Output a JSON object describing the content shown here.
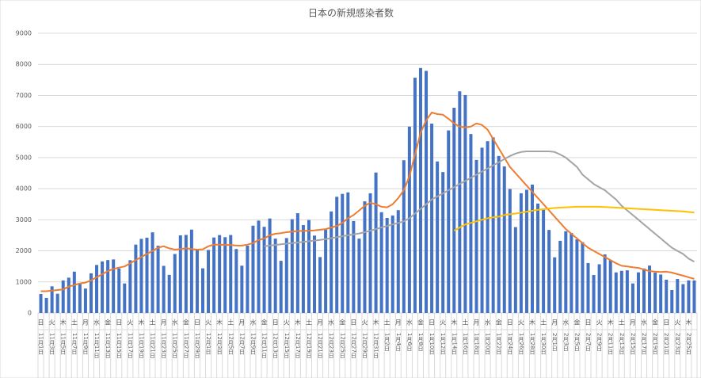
{
  "chart_data": {
    "type": "bar",
    "title": "日本の新規感染者数",
    "categories": [
      "11月1日",
      null,
      "11月3日",
      null,
      "11月5日",
      null,
      "11月7日",
      null,
      "11月9日",
      null,
      "11月11日",
      null,
      "11月13日",
      null,
      "11月15日",
      null,
      "11月17日",
      null,
      "11月19日",
      null,
      "11月21日",
      null,
      "11月23日",
      null,
      "11月25日",
      null,
      "11月27日",
      null,
      "11月29日",
      null,
      "12月1日",
      null,
      "12月3日",
      null,
      "12月5日",
      null,
      "12月7日",
      null,
      "12月9日",
      null,
      "12月11日",
      null,
      "12月13日",
      null,
      "12月15日",
      null,
      "12月17日",
      null,
      "12月19日",
      null,
      "12月21日",
      null,
      "12月23日",
      null,
      "12月25日",
      null,
      "12月27日",
      null,
      "12月29日",
      null,
      "12月31日",
      null,
      "1月2日",
      null,
      "1月4日",
      null,
      "1月6日",
      null,
      "1月8日",
      null,
      "1月10日",
      null,
      "1月12日",
      null,
      "1月14日",
      null,
      "1月16日",
      null,
      "1月18日",
      null,
      "1月20日",
      null,
      "1月22日",
      null,
      "1月24日",
      null,
      "1月26日",
      null,
      "1月28日",
      null,
      "1月30日",
      null,
      "2月1日",
      null,
      "2月3日",
      null,
      "2月5日",
      null,
      "2月7日",
      null,
      "2月9日",
      null,
      "2月11日",
      null,
      "2月13日",
      null,
      "2月15日",
      null,
      "2月17日",
      null,
      "2月19日",
      null,
      "2月21日",
      null,
      "2月23日",
      null,
      "2月25日",
      null
    ],
    "weekdays": [
      "日",
      null,
      "火",
      null,
      "木",
      null,
      "土",
      null,
      "月",
      null,
      "水",
      null,
      "金",
      null,
      "日",
      null,
      "火",
      null,
      "木",
      null,
      "土",
      null,
      "月",
      null,
      "水",
      null,
      "金",
      null,
      "日",
      null,
      "火",
      null,
      "木",
      null,
      "土",
      null,
      "月",
      null,
      "水",
      null,
      "金",
      null,
      "日",
      null,
      "火",
      null,
      "木",
      null,
      "土",
      null,
      "月",
      null,
      "水",
      null,
      "金",
      null,
      "日",
      null,
      "火",
      null,
      "木",
      null,
      "土",
      null,
      "月",
      null,
      "水",
      null,
      "金",
      null,
      "日",
      null,
      "火",
      null,
      "木",
      null,
      "土",
      null,
      "月",
      null,
      "水",
      null,
      "金",
      null,
      "日",
      null,
      "火",
      null,
      "木",
      null,
      "土",
      null,
      "月",
      null,
      "水",
      null,
      "金",
      null,
      "日",
      null,
      "火",
      null,
      "木",
      null,
      "土",
      null,
      "月",
      null,
      "水",
      null,
      "金",
      null,
      "日",
      null,
      "火",
      null,
      "木",
      null
    ],
    "values": [
      613,
      487,
      859,
      620,
      1048,
      1138,
      1331,
      930,
      788,
      1278,
      1546,
      1660,
      1704,
      1724,
      1432,
      951,
      1699,
      2201,
      2386,
      2424,
      2596,
      2165,
      1518,
      1228,
      1900,
      2499,
      2512,
      2684,
      2060,
      1438,
      2029,
      2430,
      2508,
      2440,
      2510,
      2060,
      1523,
      2167,
      2810,
      2973,
      2774,
      3041,
      2394,
      1680,
      2411,
      3018,
      3211,
      2829,
      2992,
      2491,
      1800,
      2679,
      3269,
      3740,
      3833,
      3881,
      2960,
      2394,
      3593,
      3852,
      4520,
      3244,
      3059,
      3138,
      3309,
      4915,
      5997,
      7570,
      7882,
      7790,
      6094,
      4876,
      4535,
      5875,
      6605,
      7133,
      7014,
      5759,
      4925,
      5320,
      5529,
      5652,
      5053,
      4717,
      3990,
      2764,
      3853,
      3965,
      4132,
      3522,
      3343,
      2673,
      1792,
      2324,
      2630,
      2576,
      2370,
      2279,
      1608,
      1224,
      1569,
      1884,
      1699,
      1307,
      1357,
      1374,
      952,
      1308,
      1432,
      1526,
      1301,
      1238,
      1072,
      739,
      1096,
      929,
      1050,
      1050
    ],
    "color": "#4472c4",
    "series": [
      {
        "color": "#ed7d31",
        "values": [
          700,
          700,
          720,
          740,
          760,
          850,
          900,
          950,
          980,
          1050,
          1150,
          1250,
          1350,
          1420,
          1460,
          1500,
          1600,
          1700,
          1800,
          1900,
          2000,
          2100,
          2150,
          2080,
          2040,
          2060,
          2080,
          2060,
          2040,
          2050,
          2150,
          2200,
          2200,
          2190,
          2190,
          2170,
          2170,
          2200,
          2250,
          2350,
          2400,
          2500,
          2550,
          2570,
          2600,
          2620,
          2640,
          2640,
          2650,
          2660,
          2680,
          2700,
          2750,
          2800,
          2900,
          3050,
          3150,
          3300,
          3450,
          3550,
          3500,
          3420,
          3400,
          3500,
          3700,
          3950,
          4400,
          5100,
          5800,
          6200,
          6450,
          6400,
          6380,
          6250,
          6100,
          6000,
          5970,
          6000,
          6100,
          6050,
          5900,
          5600,
          5300,
          5000,
          4700,
          4500,
          4300,
          4100,
          3900,
          3700,
          3500,
          3300,
          3100,
          2900,
          2700,
          2550,
          2400,
          2250,
          2100,
          2000,
          1900,
          1800,
          1700,
          1600,
          1520,
          1500,
          1470,
          1450,
          1400,
          1350,
          1330,
          1320,
          1330,
          1300,
          1250,
          1200,
          1150,
          1100
        ]
      },
      {
        "color": "#a5a5a5",
        "values": [
          null,
          null,
          null,
          null,
          null,
          null,
          null,
          null,
          null,
          null,
          null,
          null,
          null,
          null,
          null,
          null,
          null,
          null,
          null,
          null,
          null,
          null,
          null,
          null,
          null,
          null,
          null,
          null,
          null,
          null,
          null,
          null,
          null,
          null,
          null,
          null,
          null,
          null,
          null,
          null,
          2150,
          2170,
          2190,
          2210,
          2230,
          2250,
          2270,
          2290,
          2310,
          2330,
          2350,
          2380,
          2410,
          2440,
          2470,
          2500,
          2530,
          2560,
          2600,
          2650,
          2700,
          2750,
          2800,
          2850,
          2900,
          2950,
          3050,
          3200,
          3350,
          3500,
          3650,
          3750,
          3850,
          3950,
          4050,
          4150,
          4250,
          4350,
          4450,
          4550,
          4650,
          4750,
          4850,
          4950,
          5050,
          5130,
          5180,
          5200,
          5200,
          5200,
          5200,
          5200,
          5180,
          5100,
          5000,
          4850,
          4700,
          4450,
          4300,
          4150,
          4050,
          3950,
          3800,
          3650,
          3450,
          3300,
          3150,
          3000,
          2850,
          2700,
          2550,
          2400,
          2250,
          2100,
          2000,
          1900,
          1750,
          1650
        ]
      },
      {
        "color": "#ffc000",
        "values": [
          null,
          null,
          null,
          null,
          null,
          null,
          null,
          null,
          null,
          null,
          null,
          null,
          null,
          null,
          null,
          null,
          null,
          null,
          null,
          null,
          null,
          null,
          null,
          null,
          null,
          null,
          null,
          null,
          null,
          null,
          null,
          null,
          null,
          null,
          null,
          null,
          null,
          null,
          null,
          null,
          null,
          null,
          null,
          null,
          null,
          null,
          null,
          null,
          null,
          null,
          null,
          null,
          null,
          null,
          null,
          null,
          null,
          null,
          null,
          null,
          null,
          null,
          null,
          null,
          null,
          null,
          null,
          null,
          null,
          null,
          null,
          null,
          null,
          null,
          2650,
          2750,
          2850,
          2900,
          2950,
          3000,
          3050,
          3080,
          3100,
          3150,
          3180,
          3200,
          3230,
          3260,
          3290,
          3320,
          3340,
          3360,
          3380,
          3390,
          3400,
          3410,
          3420,
          3420,
          3420,
          3420,
          3420,
          3410,
          3400,
          3390,
          3380,
          3370,
          3360,
          3350,
          3340,
          3330,
          3320,
          3310,
          3300,
          3290,
          3280,
          3270,
          3250,
          3230
        ]
      }
    ],
    "ylim": [
      0,
      9000
    ],
    "yticks": [
      0,
      1000,
      2000,
      3000,
      4000,
      5000,
      6000,
      7000,
      8000,
      9000
    ],
    "grid": true
  }
}
